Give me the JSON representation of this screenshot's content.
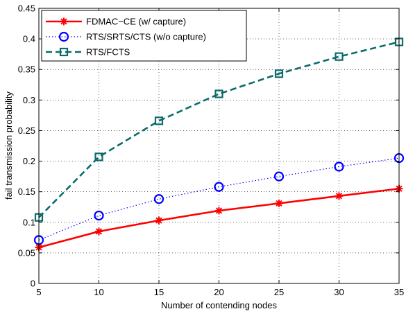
{
  "chart_data": {
    "type": "line",
    "xlabel": "Number of contending nodes",
    "ylabel": "fail transmission probability",
    "xlim": [
      5,
      35
    ],
    "ylim": [
      0,
      0.45
    ],
    "xticks": [
      5,
      10,
      15,
      20,
      25,
      30,
      35
    ],
    "yticks": [
      0,
      0.05,
      0.1,
      0.15,
      0.2,
      0.25,
      0.3,
      0.35,
      0.4,
      0.45
    ],
    "grid": true,
    "legend_position": "top-left",
    "x": [
      5,
      10,
      15,
      20,
      25,
      30,
      35
    ],
    "series": [
      {
        "name": "FDMAC−CE (w/ capture)",
        "values": [
          0.059,
          0.085,
          0.103,
          0.119,
          0.131,
          0.143,
          0.155
        ],
        "color": "#ff0000",
        "line_style": "solid",
        "marker": "asterisk"
      },
      {
        "name": "RTS/SRTS/CTS (w/o capture)",
        "values": [
          0.071,
          0.111,
          0.138,
          0.158,
          0.175,
          0.191,
          0.205
        ],
        "color": "#0000ff",
        "line_style": "dotted",
        "marker": "circle"
      },
      {
        "name": "RTS/FCTS",
        "values": [
          0.108,
          0.207,
          0.266,
          0.31,
          0.343,
          0.371,
          0.395
        ],
        "color": "#0b6b6b",
        "line_style": "dashed",
        "marker": "square"
      }
    ]
  }
}
